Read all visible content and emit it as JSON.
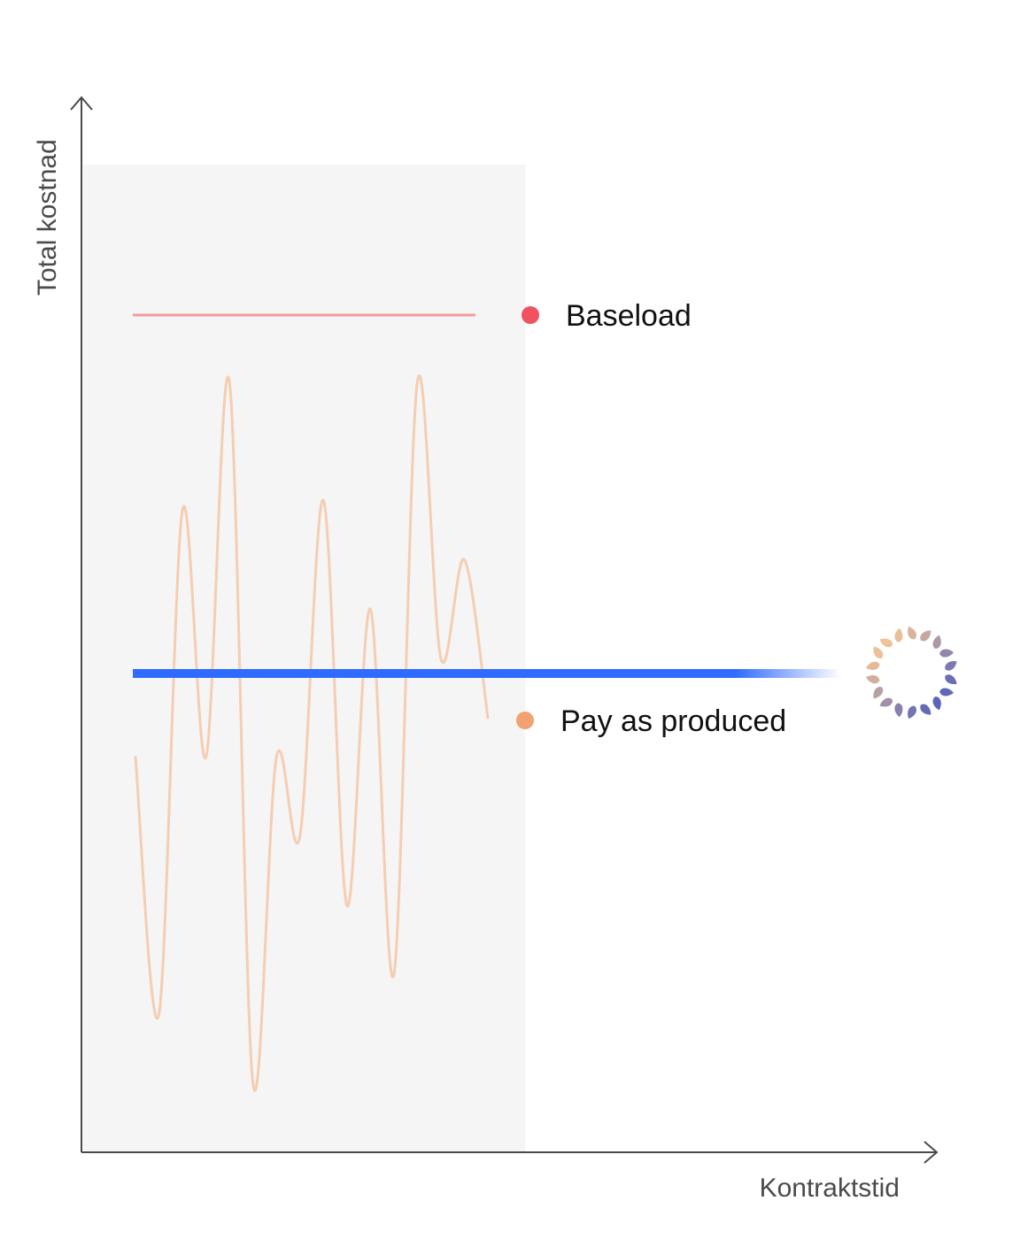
{
  "chart_data": {
    "type": "line",
    "xlabel": "Kontraktstid",
    "ylabel": "Total kostnad",
    "series": [
      {
        "name": "Baseload",
        "color": "#f0525f",
        "line_color": "#f29a9e",
        "style": "flat"
      },
      {
        "name": "Pay as produced",
        "color": "#f2a172",
        "line_color": "#f5cdb2",
        "style": "fluctuating",
        "values": [
          0.4,
          0.14,
          0.65,
          0.4,
          0.78,
          0.07,
          0.4,
          0.32,
          0.66,
          0.25,
          0.55,
          0.18,
          0.78,
          0.5,
          0.6,
          0.44
        ]
      }
    ],
    "contract_line": {
      "color": "#2f6bff"
    },
    "shaded_period": {
      "color": "#f5f5f5"
    },
    "grid": false,
    "legend_placement": "right of lines"
  },
  "icons": {
    "end_marker": "ring-of-teardrops-icon"
  }
}
